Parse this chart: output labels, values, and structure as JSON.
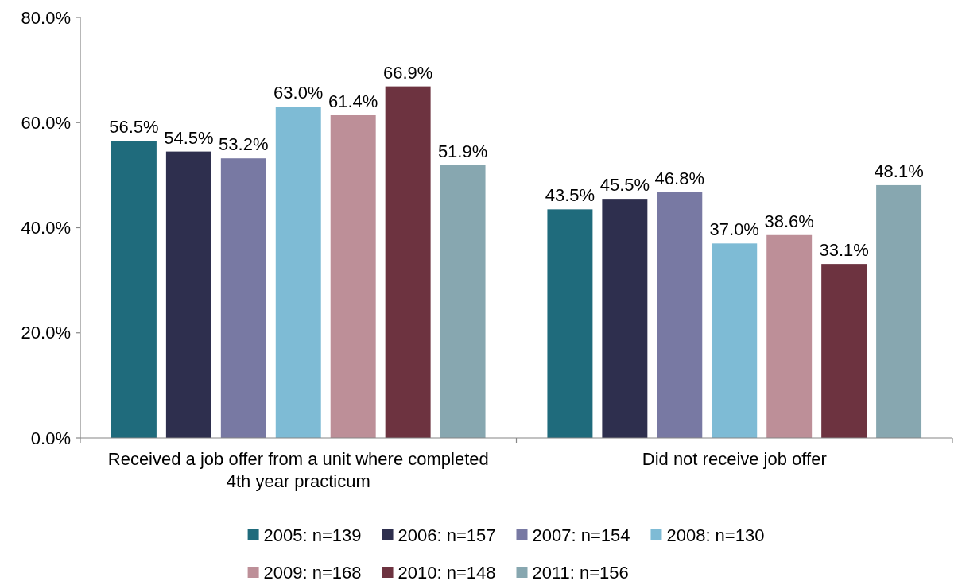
{
  "chart_data": {
    "type": "bar",
    "categories": [
      "Received a job offer from a unit where completed 4th year practicum",
      "Did not receive job offer"
    ],
    "series": [
      {
        "name": "2005: n=139",
        "color": "#1f6b7c",
        "values": [
          56.5,
          43.5
        ],
        "value_labels": [
          "56.5%",
          "43.5%"
        ]
      },
      {
        "name": "2006: n=157",
        "color": "#2e2f4e",
        "values": [
          54.5,
          45.5
        ],
        "value_labels": [
          "54.5%",
          "45.5%"
        ]
      },
      {
        "name": "2007: n=154",
        "color": "#7879a3",
        "values": [
          53.2,
          46.8
        ],
        "value_labels": [
          "53.2%",
          "46.8%"
        ]
      },
      {
        "name": "2008: n=130",
        "color": "#7ebbd5",
        "values": [
          63.0,
          37.0
        ],
        "value_labels": [
          "63.0%",
          "37.0%"
        ]
      },
      {
        "name": "2009: n=168",
        "color": "#bd8f98",
        "values": [
          61.4,
          38.6
        ],
        "value_labels": [
          "61.4%",
          "38.6%"
        ]
      },
      {
        "name": "2010: n=148",
        "color": "#6d3340",
        "values": [
          66.9,
          33.1
        ],
        "value_labels": [
          "66.9%",
          "33.1%"
        ]
      },
      {
        "name": "2011: n=156",
        "color": "#87a7b0",
        "values": [
          51.9,
          48.1
        ],
        "value_labels": [
          "51.9%",
          "48.1%"
        ]
      }
    ],
    "ylim": [
      0,
      80
    ],
    "yticks": [
      {
        "value": 0,
        "label": "0.0%"
      },
      {
        "value": 20,
        "label": "20.0%"
      },
      {
        "value": 40,
        "label": "40.0%"
      },
      {
        "value": 60,
        "label": "60.0%"
      },
      {
        "value": 80,
        "label": "80.0%"
      }
    ],
    "legend": "bottom"
  }
}
